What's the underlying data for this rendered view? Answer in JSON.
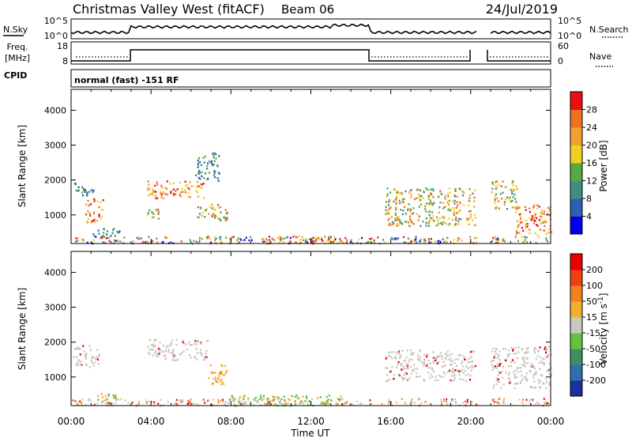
{
  "header": {
    "site": "Christmas Valley West (fitACF)",
    "beam": "Beam 06",
    "date": "24/Jul/2019"
  },
  "top_panels": {
    "nsky_label": "N.Sky",
    "nsky_ticks": [
      "10^5",
      "10^0"
    ],
    "nsearch_label": "N.Search",
    "nsearch_ticks": [
      "10^5",
      "10^0"
    ],
    "freq_label": "Freq.",
    "freq_unit": "[MHz]",
    "freq_ticks": [
      "18",
      "8"
    ],
    "nave_label": "Nave",
    "nave_ticks": [
      "60",
      "0"
    ],
    "cpid_label": "CPID",
    "cpid_text": "normal (fast) -151 RF"
  },
  "chart_data": [
    {
      "type": "heatmap",
      "name": "power",
      "ylabel": "Slant Range [km]",
      "xlabel": "",
      "yticks": [
        "4000",
        "3000",
        "2000",
        "1000"
      ],
      "ylim": [
        180,
        4600
      ],
      "xlim": [
        0,
        24
      ],
      "colorbar_label": "Power [dB]",
      "colorbar_ticks": [
        "28",
        "24",
        "20",
        "16",
        "12",
        "8",
        "4"
      ],
      "colorbar_colors": [
        "#0000ee",
        "#2f5fb0",
        "#3f8f80",
        "#5aa845",
        "#f0d020",
        "#f2a030",
        "#f07020",
        "#e81010"
      ],
      "data_gap_hours": [
        20.3,
        21.0
      ],
      "echo_regions": [
        {
          "t0": 0.1,
          "t1": 1.1,
          "r0": 1550,
          "r1": 1950,
          "level": "low"
        },
        {
          "t0": 0.7,
          "t1": 1.6,
          "r0": 800,
          "r1": 1500,
          "level": "high"
        },
        {
          "t0": 1.0,
          "t1": 2.4,
          "r0": 380,
          "r1": 650,
          "level": "low"
        },
        {
          "t0": 3.8,
          "t1": 6.6,
          "r0": 1500,
          "r1": 2000,
          "level": "high"
        },
        {
          "t0": 6.2,
          "t1": 7.4,
          "r0": 2000,
          "r1": 2800,
          "level": "low"
        },
        {
          "t0": 6.3,
          "t1": 7.8,
          "r0": 850,
          "r1": 1350,
          "level": "mid"
        },
        {
          "t0": 3.8,
          "t1": 4.6,
          "r0": 900,
          "r1": 1200,
          "level": "mid"
        },
        {
          "t0": 9.5,
          "t1": 13.2,
          "r0": 200,
          "r1": 420,
          "level": "high"
        },
        {
          "t0": 15.7,
          "t1": 20.2,
          "r0": 700,
          "r1": 1800,
          "level": "mid"
        },
        {
          "t0": 21.0,
          "t1": 22.3,
          "r0": 1200,
          "r1": 2000,
          "level": "mid"
        },
        {
          "t0": 22.2,
          "t1": 24.0,
          "r0": 400,
          "r1": 1300,
          "level": "high"
        }
      ]
    },
    {
      "type": "heatmap",
      "name": "velocity",
      "ylabel": "Slant Range [km]",
      "xlabel": "Time UT",
      "xticks": [
        "00:00",
        "04:00",
        "08:00",
        "12:00",
        "16:00",
        "20:00",
        "00:00"
      ],
      "yticks": [
        "4000",
        "3000",
        "2000",
        "1000"
      ],
      "ylim": [
        180,
        4600
      ],
      "xlim": [
        0,
        24
      ],
      "colorbar_label": "Velocity [m s",
      "colorbar_unit_superscript": "-1",
      "colorbar_unit_close": "]",
      "colorbar_ticks": [
        "200",
        "100",
        "50",
        "15",
        "-15",
        "-50",
        "-100",
        "-200"
      ],
      "colorbar_colors": [
        "#1a2fa0",
        "#2f6fb0",
        "#3f8f60",
        "#66c040",
        "#c8c8c0",
        "#f2b030",
        "#f08020",
        "#ee4010",
        "#e80000"
      ],
      "data_gap_hours": [
        20.3,
        21.0
      ],
      "echo_regions": [
        {
          "t0": 0.1,
          "t1": 1.4,
          "r0": 1300,
          "r1": 1950,
          "level": "ground"
        },
        {
          "t0": 3.8,
          "t1": 6.8,
          "r0": 1500,
          "r1": 2100,
          "level": "ground"
        },
        {
          "t0": 6.8,
          "t1": 7.8,
          "r0": 800,
          "r1": 1400,
          "level": "away"
        },
        {
          "t0": 1.3,
          "t1": 2.4,
          "r0": 350,
          "r1": 600,
          "level": "toward"
        },
        {
          "t0": 8.0,
          "t1": 13.5,
          "r0": 200,
          "r1": 500,
          "level": "toward"
        },
        {
          "t0": 15.7,
          "t1": 20.2,
          "r0": 900,
          "r1": 1800,
          "level": "ground"
        },
        {
          "t0": 21.0,
          "t1": 24.0,
          "r0": 700,
          "r1": 1900,
          "level": "ground"
        }
      ]
    }
  ]
}
